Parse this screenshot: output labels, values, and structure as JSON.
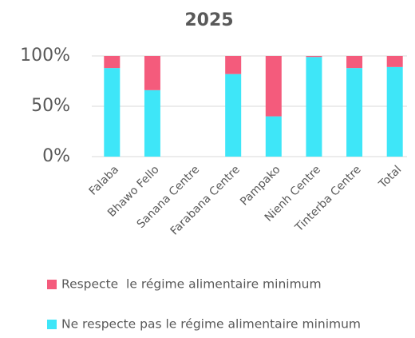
{
  "chart_data": {
    "type": "stacked_bar",
    "title": "2025",
    "categories": [
      "Falaba",
      "Bhawo Fello",
      "Sanana Centre",
      "Farabana Centre",
      "Pampako",
      "Nienh Centre",
      "Tinterba Centre",
      "Total"
    ],
    "series": [
      {
        "name": "Ne respecte pas le régime alimentaire minimum",
        "color": "#3ee6f8",
        "values": [
          88,
          66,
          null,
          82,
          40,
          99,
          88,
          89
        ]
      },
      {
        "name": "Respecte  le régime alimentaire minimum",
        "color": "#f45b7c",
        "values": [
          12,
          34,
          null,
          18,
          60,
          1,
          12,
          11
        ]
      }
    ],
    "ylim": [
      0,
      100
    ],
    "yticks": [
      {
        "value": 0,
        "label": "0%"
      },
      {
        "value": 50,
        "label": "50%"
      },
      {
        "value": 100,
        "label": "100%"
      }
    ],
    "grid": true
  }
}
